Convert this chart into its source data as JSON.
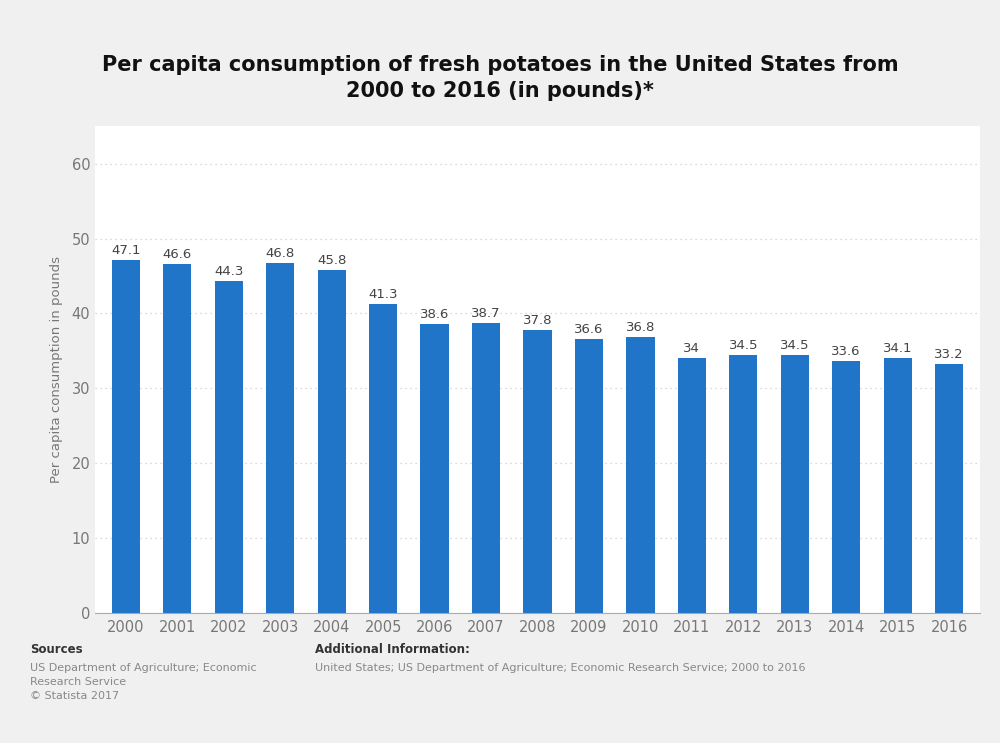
{
  "title": "Per capita consumption of fresh potatoes in the United States from\n2000 to 2016 (in pounds)*",
  "years": [
    "2000",
    "2001",
    "2002",
    "2003",
    "2004",
    "2005",
    "2006",
    "2007",
    "2008",
    "2009",
    "2010",
    "2011",
    "2012",
    "2013",
    "2014",
    "2015",
    "2016"
  ],
  "values": [
    47.1,
    46.6,
    44.3,
    46.8,
    45.8,
    41.3,
    38.6,
    38.7,
    37.8,
    36.6,
    36.8,
    34.0,
    34.5,
    34.5,
    33.6,
    34.1,
    33.2
  ],
  "bar_color": "#2175c8",
  "plot_bg_color": "#ffffff",
  "outer_bg_color": "#f0f0f0",
  "footer_bg_color": "#f0f0f0",
  "ylabel": "Per capita consumption in pounds",
  "yticks": [
    0,
    10,
    20,
    30,
    40,
    50,
    60
  ],
  "ylim": [
    0,
    65
  ],
  "title_fontsize": 15,
  "label_fontsize": 9.5,
  "tick_fontsize": 10.5,
  "bar_value_fontsize": 9.5,
  "bar_width": 0.55,
  "sources_text": "Sources\nUS Department of Agriculture; Economic\nResearch Service\n© Statista 2017",
  "additional_text": "Additional Information:\nUnited States; US Department of Agriculture; Economic Research Service; 2000 to 2016",
  "grid_color": "#cccccc",
  "spine_color": "#aaaaaa",
  "tick_color": "#777777",
  "value_label_color": "#444444"
}
